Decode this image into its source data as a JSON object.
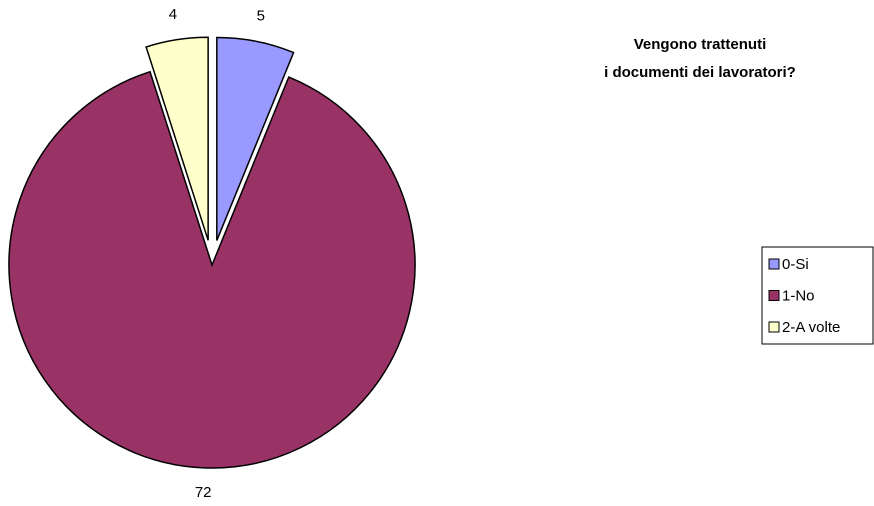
{
  "chart_data": {
    "type": "pie",
    "title": [
      "Vengono trattenuti",
      "i documenti dei lavoratori?"
    ],
    "categories": [
      "0-Si",
      "1-No",
      "2-A volte"
    ],
    "values": [
      5,
      72,
      4
    ],
    "colors": [
      "#9999ff",
      "#993366",
      "#ffffcc"
    ],
    "explode": [
      true,
      false,
      true
    ],
    "legend": "right"
  }
}
